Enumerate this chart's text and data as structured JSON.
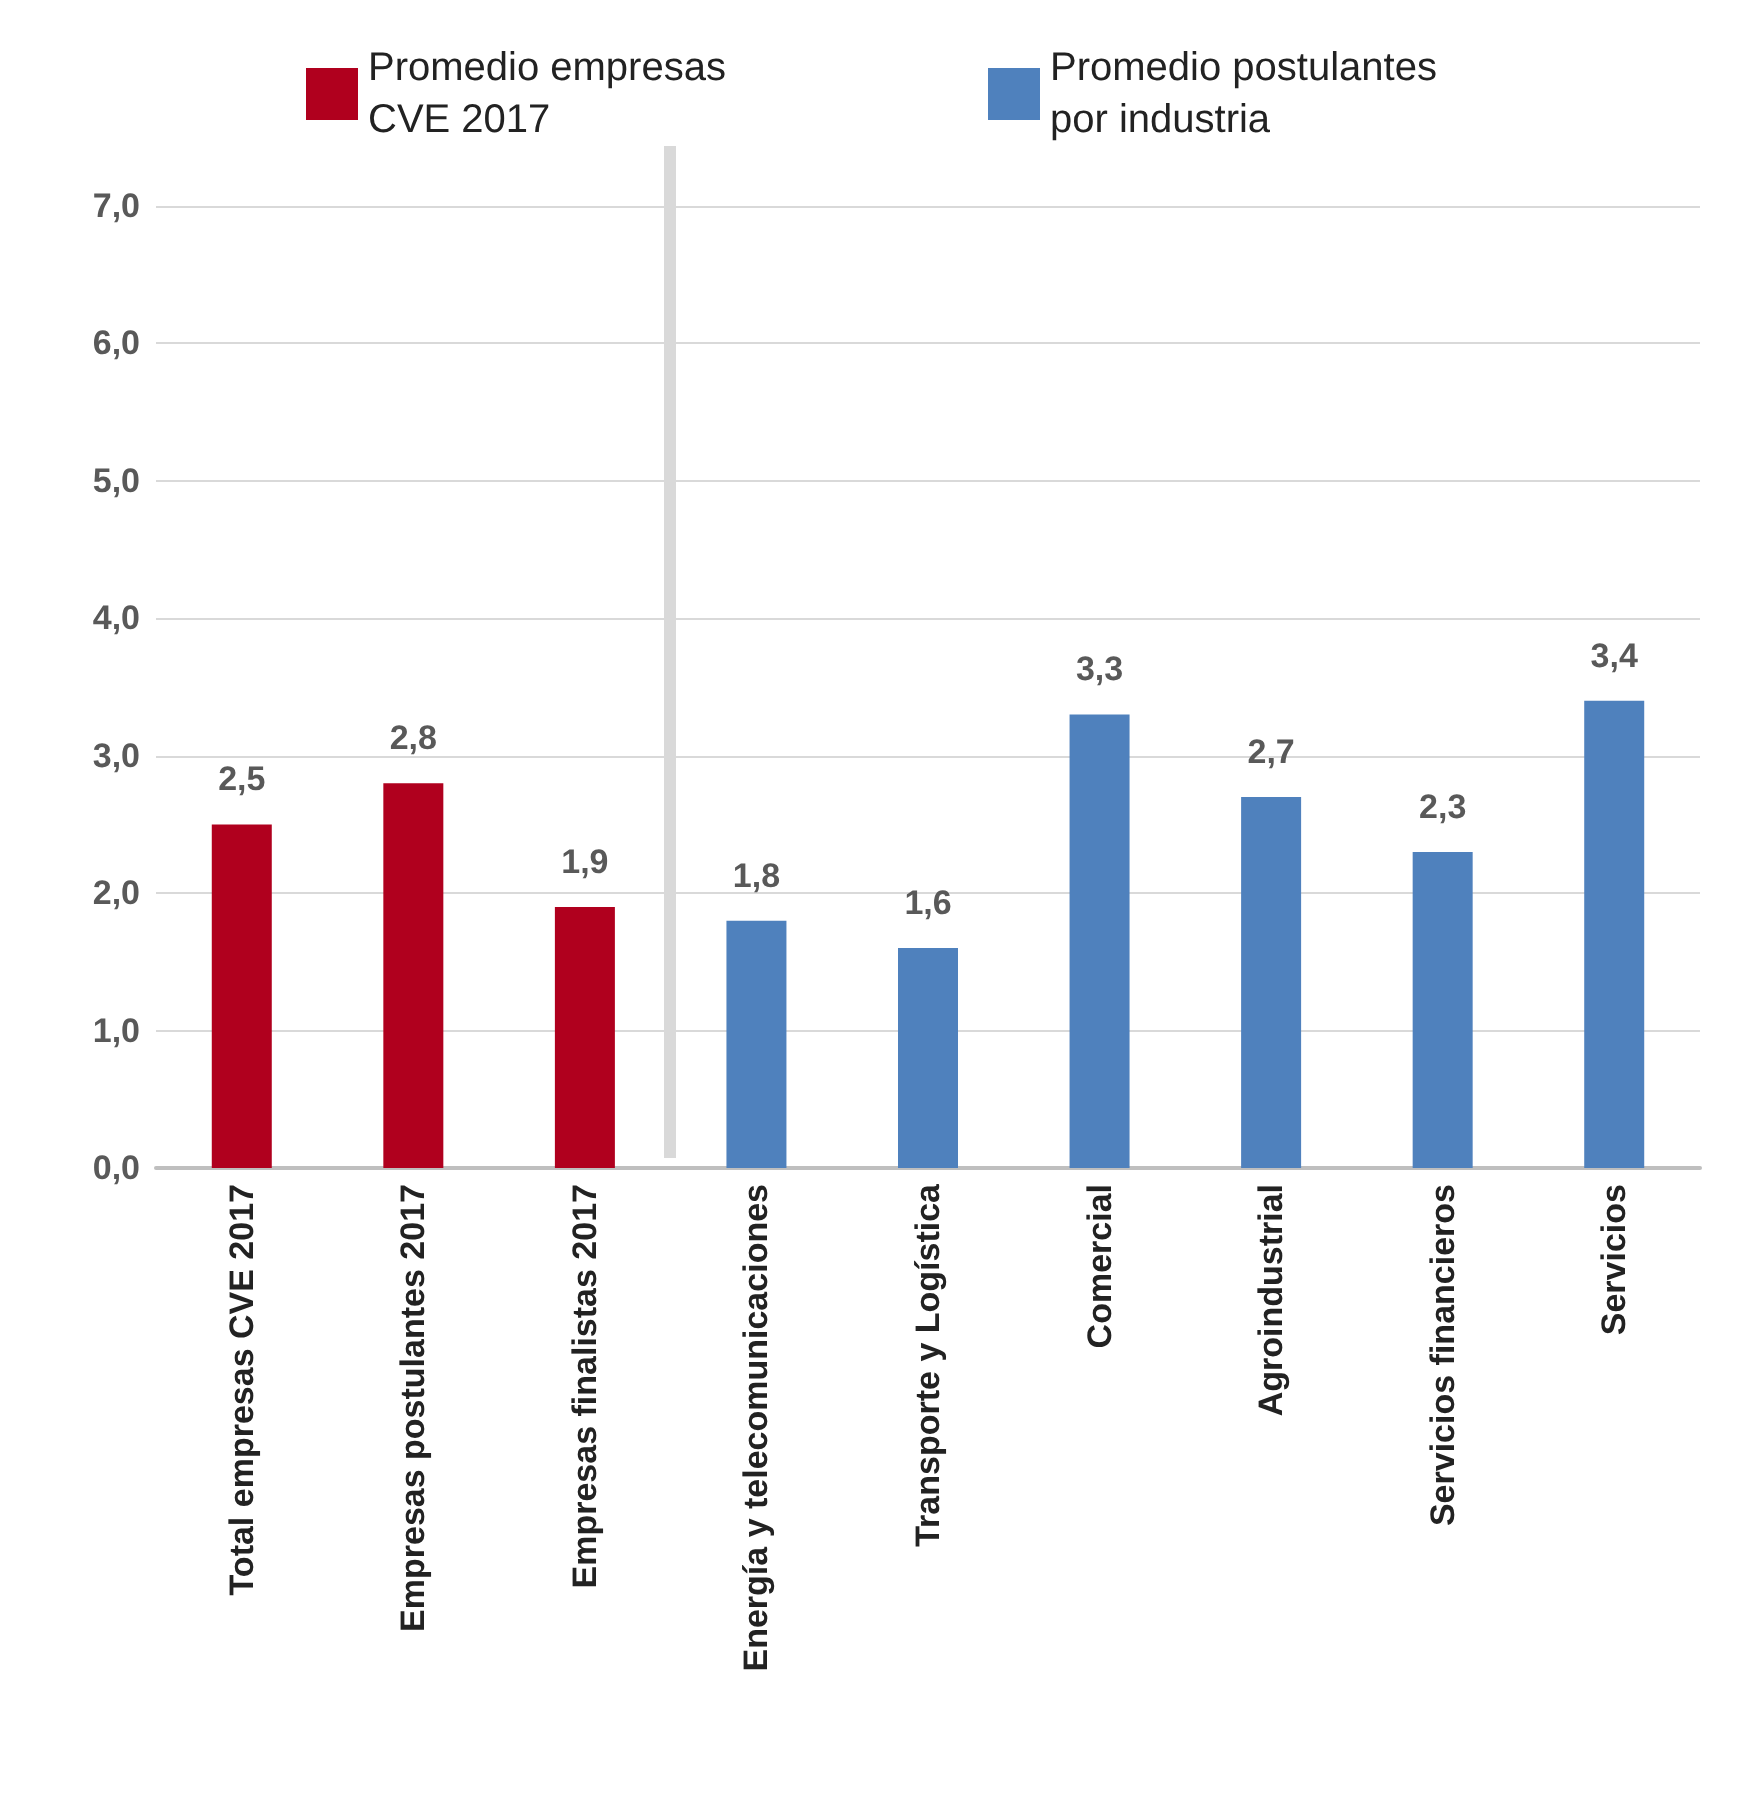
{
  "chart_data": {
    "type": "bar",
    "categories": [
      "Total empresas CVE 2017",
      "Empresas postulantes 2017",
      "Empresas finalistas 2017",
      "Energía y telecomunicaciones",
      "Transporte y Logística",
      "Comercial",
      "Agroindustrial",
      "Servicios financieros",
      "Servicios"
    ],
    "series": [
      {
        "name": "Promedio empresas CVE 2017",
        "color": "#b0001e",
        "values": [
          2.5,
          2.8,
          1.9,
          null,
          null,
          null,
          null,
          null,
          null
        ],
        "value_labels": [
          "2,5",
          "2,8",
          "1,9",
          null,
          null,
          null,
          null,
          null,
          null
        ]
      },
      {
        "name": "Promedio postulantes por industria",
        "color": "#4f81bd",
        "values": [
          null,
          null,
          null,
          1.8,
          1.6,
          3.3,
          2.7,
          2.3,
          3.4
        ],
        "value_labels": [
          null,
          null,
          null,
          "1,8",
          "1,6",
          "3,3",
          "2,7",
          "2,3",
          "3,4"
        ]
      }
    ],
    "ylim": [
      0,
      7
    ],
    "yticks": [
      {
        "value": 0,
        "label": "0,0"
      },
      {
        "value": 1,
        "label": "1,0"
      },
      {
        "value": 2,
        "label": "2,0"
      },
      {
        "value": 3,
        "label": "3,0"
      },
      {
        "value": 4,
        "label": "4,0"
      },
      {
        "value": 5,
        "label": "5,0"
      },
      {
        "value": 6,
        "label": "6,0"
      },
      {
        "value": 7,
        "label": "7,0"
      }
    ],
    "grid": "y",
    "legend": "top"
  }
}
